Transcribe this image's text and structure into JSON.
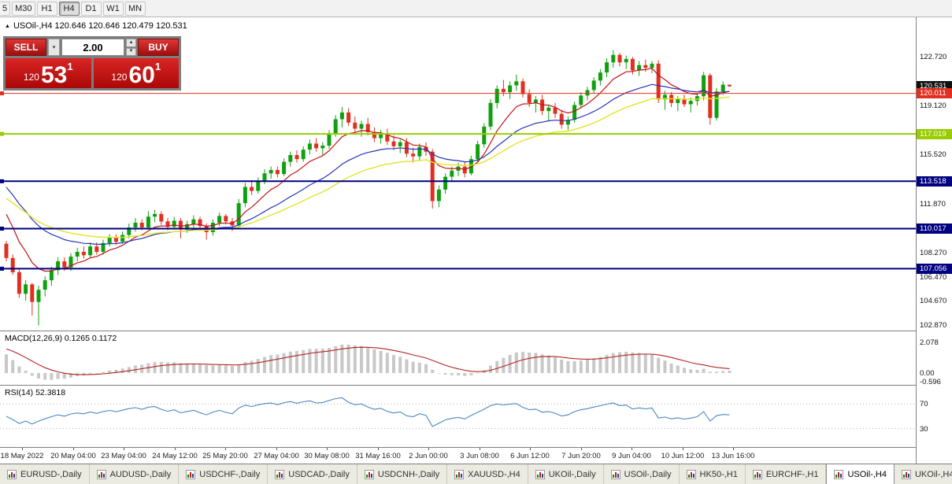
{
  "window": {
    "title_arrow": "▲",
    "instrument_title": "USOil-,H4 120.646 120.646 120.479 120.531"
  },
  "toolbar": {
    "timeframes": [
      "5",
      "M30",
      "H1",
      "H4",
      "D1",
      "W1",
      "MN"
    ],
    "active": "H4"
  },
  "trade_panel": {
    "sell_label": "SELL",
    "buy_label": "BUY",
    "lot_value": "2.00",
    "bid": {
      "prefix": "120",
      "big": "53",
      "sup": "1"
    },
    "ask": {
      "prefix": "120",
      "big": "60",
      "sup": "1"
    },
    "icons": {
      "dropdown_arrow": "▾",
      "spinner_up": "▲",
      "spinner_down": "▼"
    }
  },
  "tabs": {
    "items": [
      "EURUSD-,Daily",
      "AUDUSD-,Daily",
      "USDCHF-,Daily",
      "USDCAD-,Daily",
      "USDCNH-,Daily",
      "XAUUSD-,H4",
      "UKOil-,Daily",
      "USOil-,Daily",
      "HK50-,H1",
      "EURCHF-,H1",
      "USOil-,H4",
      "UKOil-,H4"
    ],
    "active": "USOil-,H4"
  },
  "chart_data": {
    "type": "candlestick",
    "symbol": "USOil-",
    "timeframe": "H4",
    "colors": {
      "up": "#0fa00f",
      "down": "#df3020"
    },
    "price_axis_ticks": [
      "122.720",
      "119.120",
      "115.520",
      "111.870",
      "108.270",
      "106.470",
      "104.670",
      "102.870"
    ],
    "price_labels": [
      {
        "text": "120.531",
        "value": 120.531,
        "bg": "#101010"
      },
      {
        "text": "120.011",
        "value": 120.011,
        "bg": "#e23020"
      },
      {
        "text": "117.019",
        "value": 117.019,
        "bg": "#9acd00"
      },
      {
        "text": "113.518",
        "value": 113.518,
        "bg": "#000080"
      },
      {
        "text": "110.017",
        "value": 110.017,
        "bg": "#000080"
      },
      {
        "text": "107.056",
        "value": 107.056,
        "bg": "#000080"
      }
    ],
    "horizontal_lines": [
      {
        "value": 120.011,
        "color": "#e23020",
        "width": 1
      },
      {
        "value": 117.019,
        "color": "#9acd00",
        "width": 2
      },
      {
        "value": 113.518,
        "color": "#000080",
        "width": 2
      },
      {
        "value": 110.017,
        "color": "#000080",
        "width": 2
      },
      {
        "value": 107.056,
        "color": "#000080",
        "width": 2
      }
    ],
    "time_labels": [
      "18 May 2022",
      "20 May 04:00",
      "23 May 04:00",
      "24 May 12:00",
      "25 May 20:00",
      "27 May 04:00",
      "30 May 08:00",
      "31 May 16:00",
      "2 Jun 00:00",
      "3 Jun 08:00",
      "6 Jun 12:00",
      "7 Jun 20:00",
      "9 Jun 04:00",
      "10 Jun 12:00",
      "13 Jun 16:00"
    ],
    "time_label_x": [
      28,
      93,
      157,
      222,
      286,
      351,
      415,
      480,
      544,
      609,
      673,
      738,
      802,
      867,
      931
    ],
    "moving_averages": [
      {
        "name": "ma-fast",
        "color": "#c41414",
        "period": 8,
        "seed": 112.0,
        "width": 1.2
      },
      {
        "name": "ma-mid",
        "color": "#2635b8",
        "period": 21,
        "seed": 113.6,
        "width": 1.2
      },
      {
        "name": "ma-slow",
        "color": "#e3e32a",
        "period": 34,
        "seed": 112.5,
        "width": 1.4
      }
    ],
    "macd": {
      "label": "MACD(12,26,9) 0.1265 0.1172",
      "fast": 12,
      "slow": 26,
      "signal": 9,
      "seeds": {
        "fast": 110.8,
        "slow": 109.2,
        "signal": 1.7
      },
      "axis_values": [
        "2.078",
        "0.00",
        "-0.596"
      ],
      "histogram_color": "#c8c8c8",
      "signal_color": "#b22222"
    },
    "rsi": {
      "label": "RSI(14) 52.3818",
      "period": 14,
      "levels": [
        70,
        30
      ],
      "color": "#4a87c0"
    },
    "ohlc": [
      [
        108.9,
        109.1,
        107.6,
        107.85
      ],
      [
        107.85,
        108.1,
        106.6,
        106.8
      ],
      [
        106.8,
        107.0,
        104.9,
        105.2
      ],
      [
        105.2,
        106.2,
        104.7,
        105.9
      ],
      [
        105.9,
        106.0,
        103.6,
        104.6
      ],
      [
        104.6,
        105.8,
        102.87,
        105.5
      ],
      [
        105.5,
        106.5,
        105.0,
        106.2
      ],
      [
        106.2,
        107.2,
        105.8,
        106.95
      ],
      [
        106.95,
        107.9,
        106.6,
        107.6
      ],
      [
        107.6,
        107.9,
        106.9,
        107.15
      ],
      [
        107.15,
        108.2,
        106.9,
        107.95
      ],
      [
        107.95,
        108.6,
        107.6,
        108.3
      ],
      [
        108.3,
        108.7,
        107.8,
        108.05
      ],
      [
        108.05,
        109.0,
        107.9,
        108.7
      ],
      [
        108.7,
        109.0,
        108.1,
        108.3
      ],
      [
        108.3,
        109.2,
        108.1,
        108.95
      ],
      [
        108.95,
        109.6,
        108.7,
        109.35
      ],
      [
        109.35,
        109.6,
        108.8,
        109.05
      ],
      [
        109.05,
        109.8,
        108.9,
        109.55
      ],
      [
        109.55,
        110.4,
        109.3,
        110.1
      ],
      [
        110.1,
        110.8,
        109.8,
        110.45
      ],
      [
        110.45,
        110.7,
        109.9,
        110.1
      ],
      [
        110.1,
        111.3,
        109.95,
        110.9
      ],
      [
        110.9,
        111.4,
        110.5,
        111.1
      ],
      [
        111.1,
        111.3,
        110.3,
        110.55
      ],
      [
        110.55,
        110.8,
        109.9,
        110.15
      ],
      [
        110.15,
        110.9,
        109.95,
        110.6
      ],
      [
        110.6,
        110.8,
        109.3,
        109.95
      ],
      [
        109.95,
        110.6,
        109.7,
        110.35
      ],
      [
        110.35,
        111.0,
        110.1,
        110.7
      ],
      [
        110.7,
        110.9,
        109.9,
        110.2
      ],
      [
        110.2,
        110.4,
        109.2,
        109.75
      ],
      [
        109.75,
        110.7,
        109.5,
        110.45
      ],
      [
        110.45,
        111.2,
        110.2,
        110.95
      ],
      [
        110.95,
        111.1,
        110.3,
        110.55
      ],
      [
        110.55,
        110.8,
        109.85,
        110.25
      ],
      [
        110.25,
        112.2,
        110.1,
        111.9
      ],
      [
        111.9,
        113.4,
        111.6,
        113.1
      ],
      [
        113.1,
        113.6,
        112.5,
        112.8
      ],
      [
        112.8,
        113.8,
        112.6,
        113.55
      ],
      [
        113.55,
        114.4,
        113.3,
        114.1
      ],
      [
        114.1,
        114.6,
        113.7,
        114.35
      ],
      [
        114.35,
        114.6,
        113.8,
        114.05
      ],
      [
        114.05,
        115.2,
        113.9,
        114.95
      ],
      [
        114.95,
        115.7,
        114.6,
        115.45
      ],
      [
        115.45,
        115.8,
        114.9,
        115.15
      ],
      [
        115.15,
        116.1,
        114.95,
        115.85
      ],
      [
        115.85,
        116.6,
        115.5,
        116.3
      ],
      [
        116.3,
        116.7,
        115.7,
        115.95
      ],
      [
        115.95,
        116.4,
        115.4,
        116.15
      ],
      [
        116.15,
        117.3,
        115.9,
        117.05
      ],
      [
        117.05,
        118.4,
        116.8,
        118.1
      ],
      [
        118.1,
        119.0,
        117.5,
        118.6
      ],
      [
        118.6,
        118.9,
        117.6,
        117.85
      ],
      [
        117.85,
        118.3,
        117.1,
        117.4
      ],
      [
        117.4,
        118.0,
        116.8,
        117.75
      ],
      [
        117.75,
        118.2,
        116.9,
        117.15
      ],
      [
        117.15,
        117.5,
        116.4,
        116.7
      ],
      [
        116.7,
        117.3,
        116.3,
        117.05
      ],
      [
        117.05,
        117.4,
        116.2,
        116.45
      ],
      [
        116.45,
        116.9,
        115.8,
        116.1
      ],
      [
        116.1,
        116.6,
        115.6,
        116.4
      ],
      [
        116.4,
        116.7,
        115.3,
        115.55
      ],
      [
        115.55,
        116.0,
        114.9,
        115.35
      ],
      [
        115.35,
        116.3,
        115.0,
        116.05
      ],
      [
        116.05,
        116.4,
        115.4,
        115.7
      ],
      [
        115.7,
        115.9,
        111.5,
        112.05
      ],
      [
        112.05,
        113.2,
        111.6,
        112.9
      ],
      [
        112.9,
        114.1,
        112.6,
        113.85
      ],
      [
        113.85,
        114.6,
        113.5,
        114.3
      ],
      [
        114.3,
        114.9,
        113.9,
        114.6
      ],
      [
        114.6,
        115.0,
        113.8,
        114.1
      ],
      [
        114.1,
        115.4,
        113.95,
        115.15
      ],
      [
        115.15,
        116.5,
        114.9,
        116.25
      ],
      [
        116.25,
        117.8,
        116.0,
        117.55
      ],
      [
        117.55,
        119.6,
        117.3,
        119.3
      ],
      [
        119.3,
        120.6,
        118.9,
        120.35
      ],
      [
        120.35,
        121.0,
        119.8,
        120.1
      ],
      [
        120.1,
        120.9,
        119.6,
        120.6
      ],
      [
        120.6,
        121.4,
        120.2,
        120.9
      ],
      [
        120.9,
        121.1,
        119.7,
        119.95
      ],
      [
        119.95,
        120.3,
        119.0,
        119.3
      ],
      [
        119.3,
        119.8,
        118.6,
        119.55
      ],
      [
        119.55,
        119.9,
        118.4,
        118.7
      ],
      [
        118.7,
        119.2,
        118.0,
        118.95
      ],
      [
        118.95,
        119.3,
        118.2,
        118.5
      ],
      [
        118.5,
        118.8,
        117.4,
        117.7
      ],
      [
        117.7,
        118.3,
        117.3,
        118.05
      ],
      [
        118.05,
        119.4,
        117.85,
        119.15
      ],
      [
        119.15,
        120.1,
        118.9,
        119.85
      ],
      [
        119.85,
        120.5,
        119.5,
        120.25
      ],
      [
        120.25,
        121.2,
        120.0,
        120.95
      ],
      [
        120.95,
        121.8,
        120.6,
        121.55
      ],
      [
        121.55,
        122.6,
        121.2,
        122.3
      ],
      [
        122.3,
        123.2,
        121.9,
        122.85
      ],
      [
        122.85,
        123.0,
        122.0,
        122.3
      ],
      [
        122.3,
        122.8,
        121.8,
        122.55
      ],
      [
        122.55,
        122.7,
        121.4,
        121.7
      ],
      [
        121.7,
        122.4,
        121.3,
        122.1
      ],
      [
        122.1,
        122.5,
        121.6,
        121.9
      ],
      [
        121.9,
        122.4,
        121.5,
        122.2
      ],
      [
        122.2,
        122.45,
        119.3,
        119.55
      ],
      [
        119.55,
        120.2,
        118.8,
        119.9
      ],
      [
        119.9,
        120.1,
        119.0,
        119.3
      ],
      [
        119.3,
        119.8,
        118.7,
        119.6
      ],
      [
        119.6,
        119.9,
        119.0,
        119.2
      ],
      [
        119.2,
        119.7,
        118.6,
        119.45
      ],
      [
        119.45,
        120.0,
        119.1,
        119.8
      ],
      [
        119.8,
        121.6,
        119.5,
        121.35
      ],
      [
        121.35,
        121.5,
        117.7,
        118.2
      ],
      [
        118.2,
        120.4,
        118.0,
        120.15
      ],
      [
        120.15,
        120.9,
        119.9,
        120.65
      ],
      [
        120.646,
        120.646,
        120.479,
        120.531
      ]
    ]
  }
}
